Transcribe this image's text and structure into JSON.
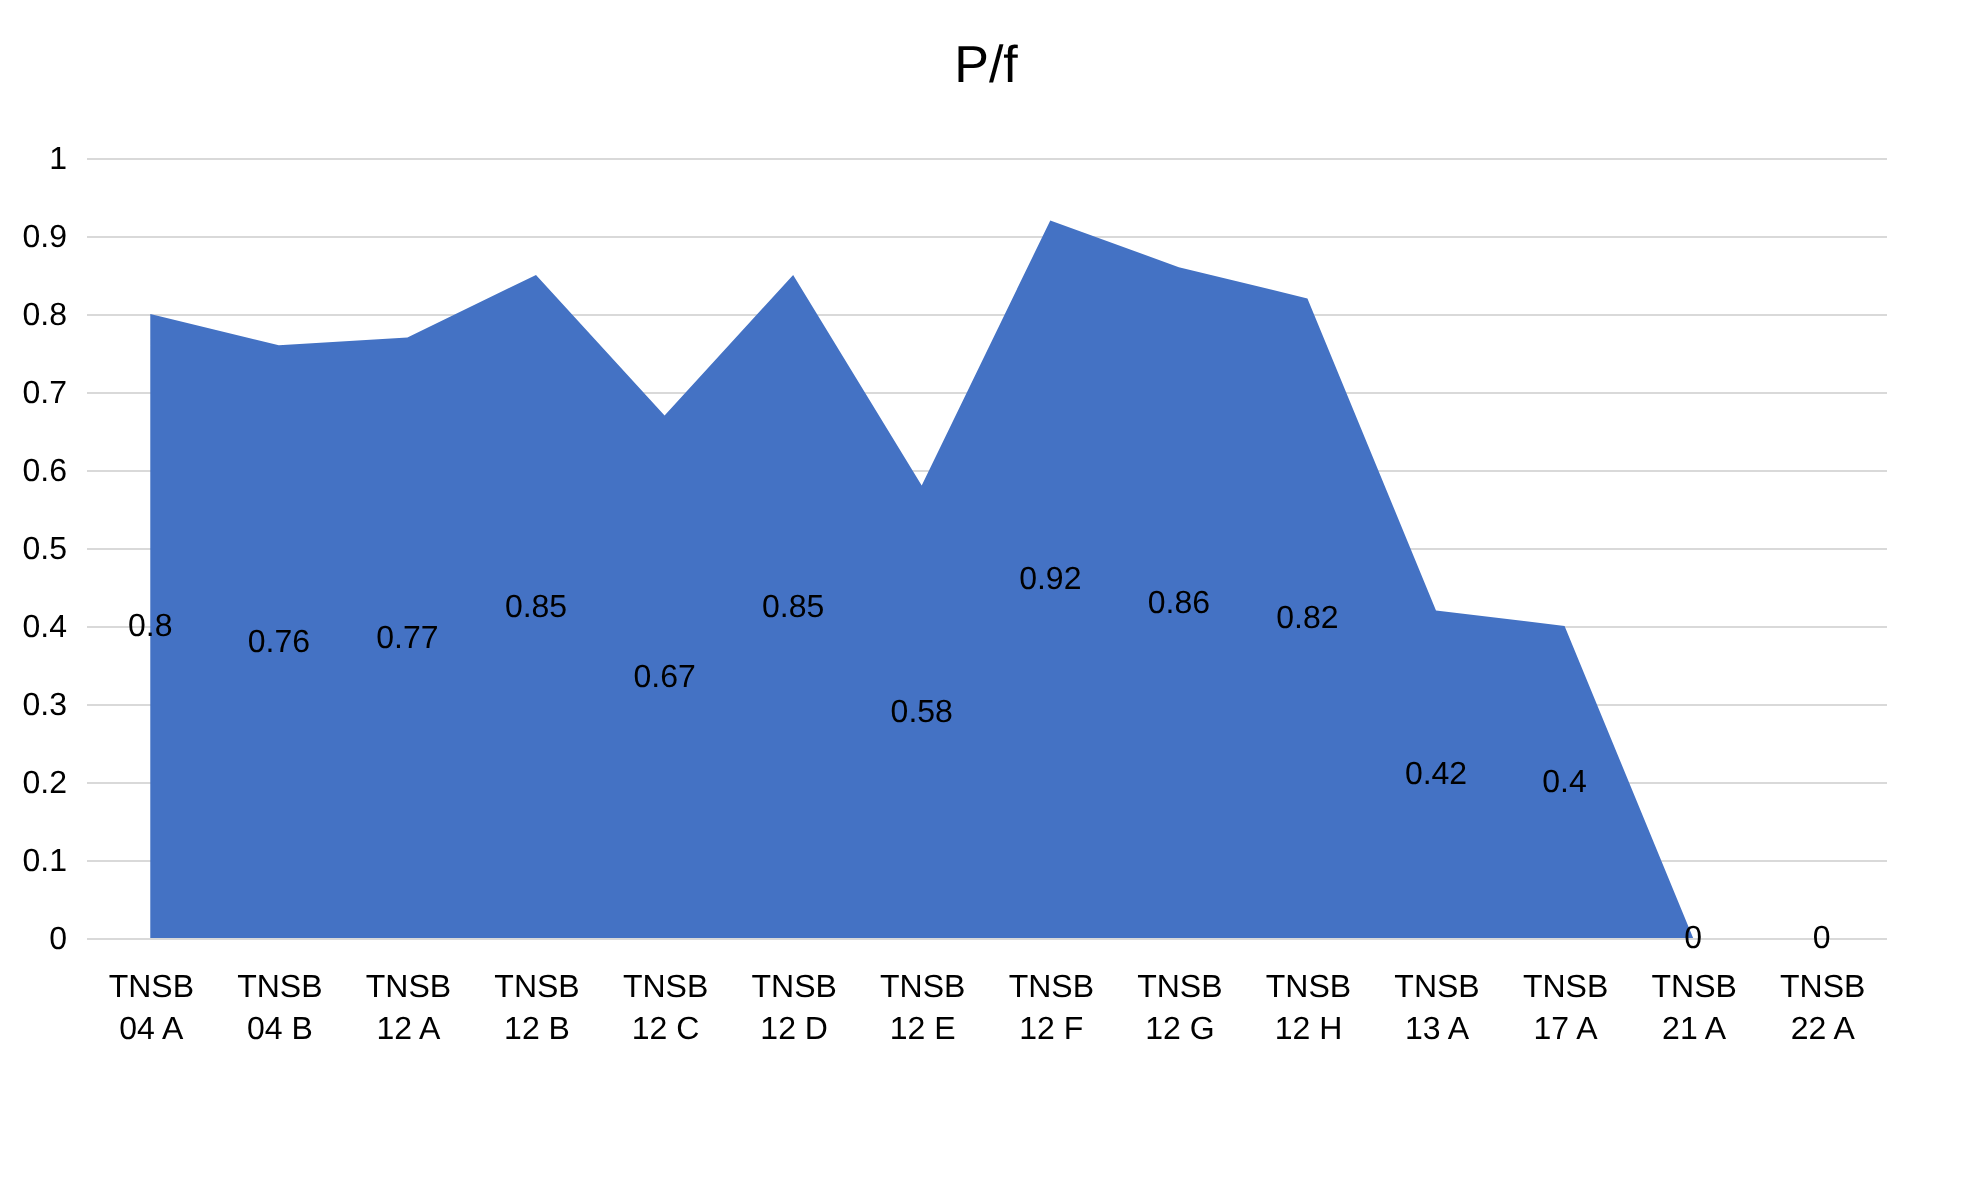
{
  "chart_data": {
    "type": "area",
    "title": "P/f",
    "categories": [
      "TNSB\n04 A",
      "TNSB\n04 B",
      "TNSB\n12 A",
      "TNSB\n12 B",
      "TNSB\n12 C",
      "TNSB\n12 D",
      "TNSB\n12 E",
      "TNSB\n12 F",
      "TNSB\n12 G",
      "TNSB\n12 H",
      "TNSB\n13 A",
      "TNSB\n17 A",
      "TNSB\n21 A",
      "TNSB\n22 A"
    ],
    "series": [
      {
        "color": "#4472c4",
        "values": [
          0.8,
          0.76,
          0.77,
          0.85,
          0.67,
          0.85,
          0.58,
          0.92,
          0.86,
          0.82,
          0.42,
          0.4,
          0,
          0
        ]
      }
    ],
    "value_labels": [
      "0.8",
      "0.76",
      "0.77",
      "0.85",
      "0.67",
      "0.85",
      "0.58",
      "0.92",
      "0.86",
      "0.82",
      "0.42",
      "0.4",
      "0",
      "0"
    ],
    "ylim": [
      0,
      1
    ],
    "yticks": [
      0,
      0.1,
      0.2,
      0.3,
      0.4,
      0.5,
      0.6,
      0.7,
      0.8,
      0.9,
      1
    ],
    "grid": "y"
  }
}
